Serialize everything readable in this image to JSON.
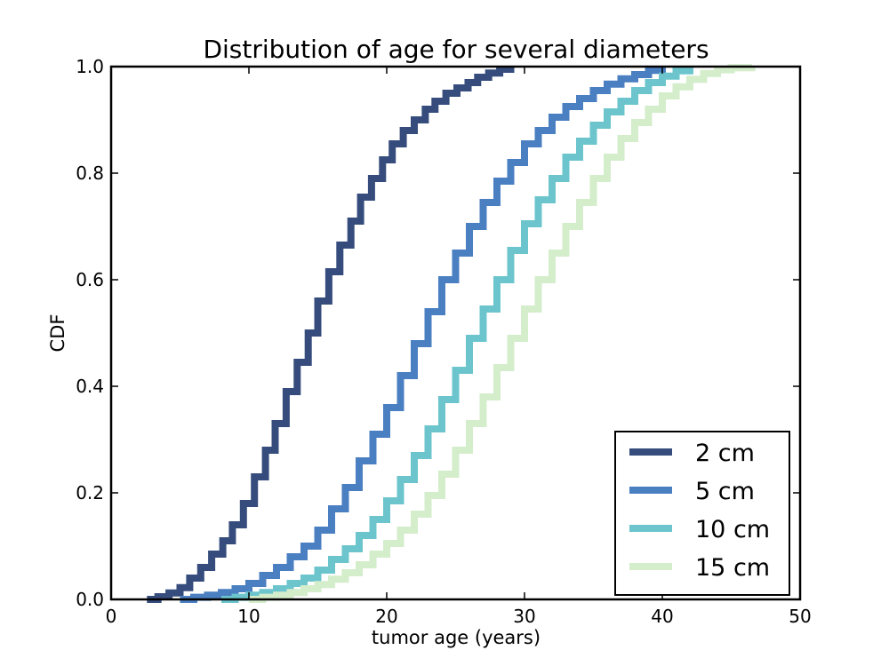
{
  "chart_data": {
    "type": "line",
    "title": "Distribution of age for several diameters",
    "xlabel": "tumor age (years)",
    "ylabel": "CDF",
    "xlim": [
      0,
      50
    ],
    "ylim": [
      0.0,
      1.0
    ],
    "xticks": [
      "0",
      "10",
      "20",
      "30",
      "40",
      "50"
    ],
    "yticks": [
      "0.0",
      "0.2",
      "0.4",
      "0.6",
      "0.8",
      "1.0"
    ],
    "grid": false,
    "legend_position": "lower-right",
    "step": true,
    "series": [
      {
        "name": "2 cm",
        "color": "#354c7c",
        "x": [
          2.6,
          3.4,
          4.2,
          5.0,
          5.7,
          6.5,
          7.3,
          8.1,
          8.8,
          9.6,
          10.4,
          11.2,
          11.9,
          12.7,
          13.5,
          14.3,
          15.0,
          15.8,
          16.6,
          17.4,
          18.1,
          18.9,
          19.7,
          20.4,
          21.2,
          22.0,
          22.8,
          23.5,
          24.3,
          25.1,
          25.9,
          26.6,
          27.4,
          28.2,
          29.0
        ],
        "y": [
          0.0,
          0.005,
          0.012,
          0.022,
          0.04,
          0.06,
          0.085,
          0.11,
          0.14,
          0.18,
          0.23,
          0.28,
          0.33,
          0.39,
          0.445,
          0.5,
          0.56,
          0.615,
          0.665,
          0.71,
          0.755,
          0.79,
          0.825,
          0.855,
          0.88,
          0.9,
          0.92,
          0.935,
          0.95,
          0.96,
          0.97,
          0.98,
          0.988,
          0.995,
          1.0
        ]
      },
      {
        "name": "5 cm",
        "color": "#4a7fc1",
        "x": [
          5.0,
          6.0,
          7.0,
          8.0,
          9.0,
          10.0,
          11.0,
          12.0,
          13.0,
          14.0,
          15.0,
          16.0,
          17.0,
          18.0,
          19.0,
          20.0,
          21.0,
          22.0,
          23.0,
          24.0,
          25.0,
          26.0,
          27.0,
          28.0,
          29.0,
          30.0,
          31.0,
          32.0,
          33.0,
          34.0,
          35.0,
          36.0,
          37.0,
          38.0,
          39.0,
          40.0
        ],
        "y": [
          0.0,
          0.004,
          0.008,
          0.013,
          0.02,
          0.03,
          0.045,
          0.06,
          0.08,
          0.1,
          0.13,
          0.17,
          0.21,
          0.26,
          0.31,
          0.36,
          0.42,
          0.48,
          0.54,
          0.6,
          0.65,
          0.7,
          0.745,
          0.785,
          0.82,
          0.855,
          0.88,
          0.905,
          0.925,
          0.94,
          0.955,
          0.967,
          0.977,
          0.985,
          0.993,
          1.0
        ]
      },
      {
        "name": "10 cm",
        "color": "#6cc5cd",
        "x": [
          8.0,
          9.0,
          10.0,
          11.0,
          12.0,
          13.0,
          14.0,
          15.0,
          16.0,
          17.0,
          18.0,
          19.0,
          20.0,
          21.0,
          22.0,
          23.0,
          24.0,
          25.0,
          26.0,
          27.0,
          28.0,
          29.0,
          30.0,
          31.0,
          32.0,
          33.0,
          34.0,
          35.0,
          36.0,
          37.0,
          38.0,
          39.0,
          40.0,
          41.0,
          42.0
        ],
        "y": [
          0.0,
          0.004,
          0.008,
          0.013,
          0.02,
          0.03,
          0.04,
          0.055,
          0.075,
          0.095,
          0.12,
          0.15,
          0.185,
          0.225,
          0.27,
          0.32,
          0.375,
          0.43,
          0.49,
          0.545,
          0.6,
          0.655,
          0.705,
          0.75,
          0.79,
          0.83,
          0.86,
          0.89,
          0.915,
          0.935,
          0.955,
          0.97,
          0.982,
          0.992,
          1.0
        ]
      },
      {
        "name": "15 cm",
        "color": "#d4edcb",
        "x": [
          10.0,
          11.0,
          12.0,
          13.0,
          14.0,
          15.0,
          16.0,
          17.0,
          18.0,
          19.0,
          20.0,
          21.0,
          22.0,
          23.0,
          24.0,
          25.0,
          26.0,
          27.0,
          28.0,
          29.0,
          30.0,
          31.0,
          32.0,
          33.0,
          34.0,
          35.0,
          36.0,
          37.0,
          38.0,
          39.0,
          40.0,
          41.0,
          42.0,
          43.0,
          44.0,
          45.0,
          46.5
        ],
        "y": [
          0.0,
          0.004,
          0.008,
          0.013,
          0.02,
          0.028,
          0.038,
          0.05,
          0.065,
          0.085,
          0.105,
          0.13,
          0.16,
          0.195,
          0.235,
          0.28,
          0.33,
          0.38,
          0.435,
          0.49,
          0.545,
          0.6,
          0.65,
          0.7,
          0.745,
          0.79,
          0.83,
          0.865,
          0.895,
          0.92,
          0.945,
          0.962,
          0.976,
          0.987,
          0.994,
          0.998,
          1.0
        ]
      }
    ]
  }
}
